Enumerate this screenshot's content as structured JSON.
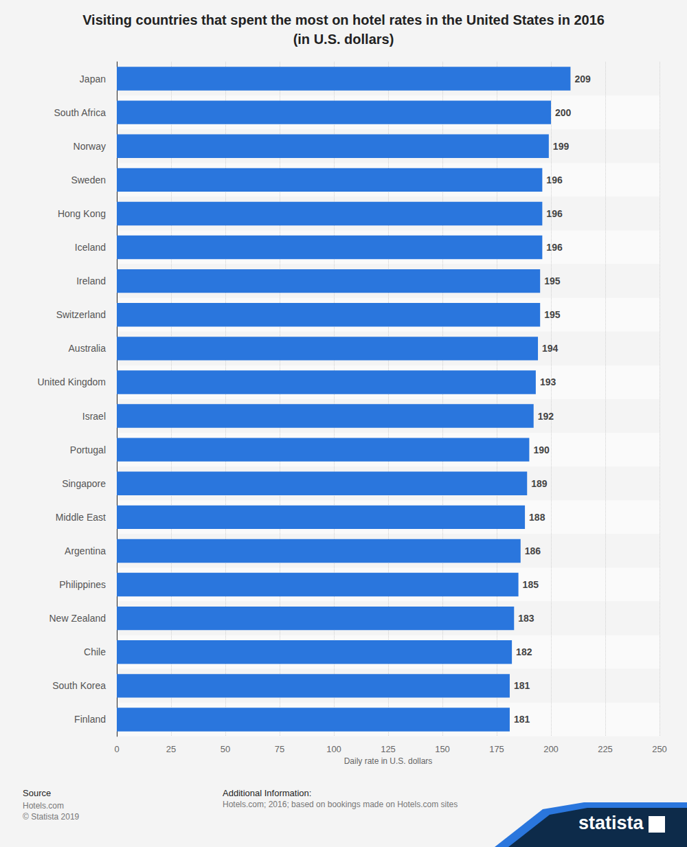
{
  "chart_data": {
    "type": "bar",
    "title": "Visiting countries that spent the most on hotel rates in the United States in 2016\n(in U.S. dollars)",
    "categories": [
      "Japan",
      "South Africa",
      "Norway",
      "Sweden",
      "Hong Kong",
      "Iceland",
      "Ireland",
      "Switzerland",
      "Australia",
      "United Kingdom",
      "Israel",
      "Portugal",
      "Singapore",
      "Middle East",
      "Argentina",
      "Philippines",
      "New Zealand",
      "Chile",
      "South Korea",
      "Finland"
    ],
    "values": [
      209,
      200,
      199,
      196,
      196,
      196,
      195,
      195,
      194,
      193,
      192,
      190,
      189,
      188,
      186,
      185,
      183,
      182,
      181,
      181
    ],
    "color": "#2a76dd",
    "xlabel": "Daily rate in U.S. dollars",
    "xlim": [
      0,
      250
    ],
    "xticks": [
      0,
      25,
      50,
      75,
      100,
      125,
      150,
      175,
      200,
      225,
      250
    ],
    "orientation": "horizontal",
    "data_labels": true,
    "grid": true
  },
  "footer": {
    "source_heading": "Source",
    "source_lines": [
      "Hotels.com",
      "© Statista 2019"
    ],
    "info_heading": "Additional Information:",
    "info_text": "Hotels.com; 2016; based on bookings made on Hotels.com sites",
    "logo": "statista"
  }
}
